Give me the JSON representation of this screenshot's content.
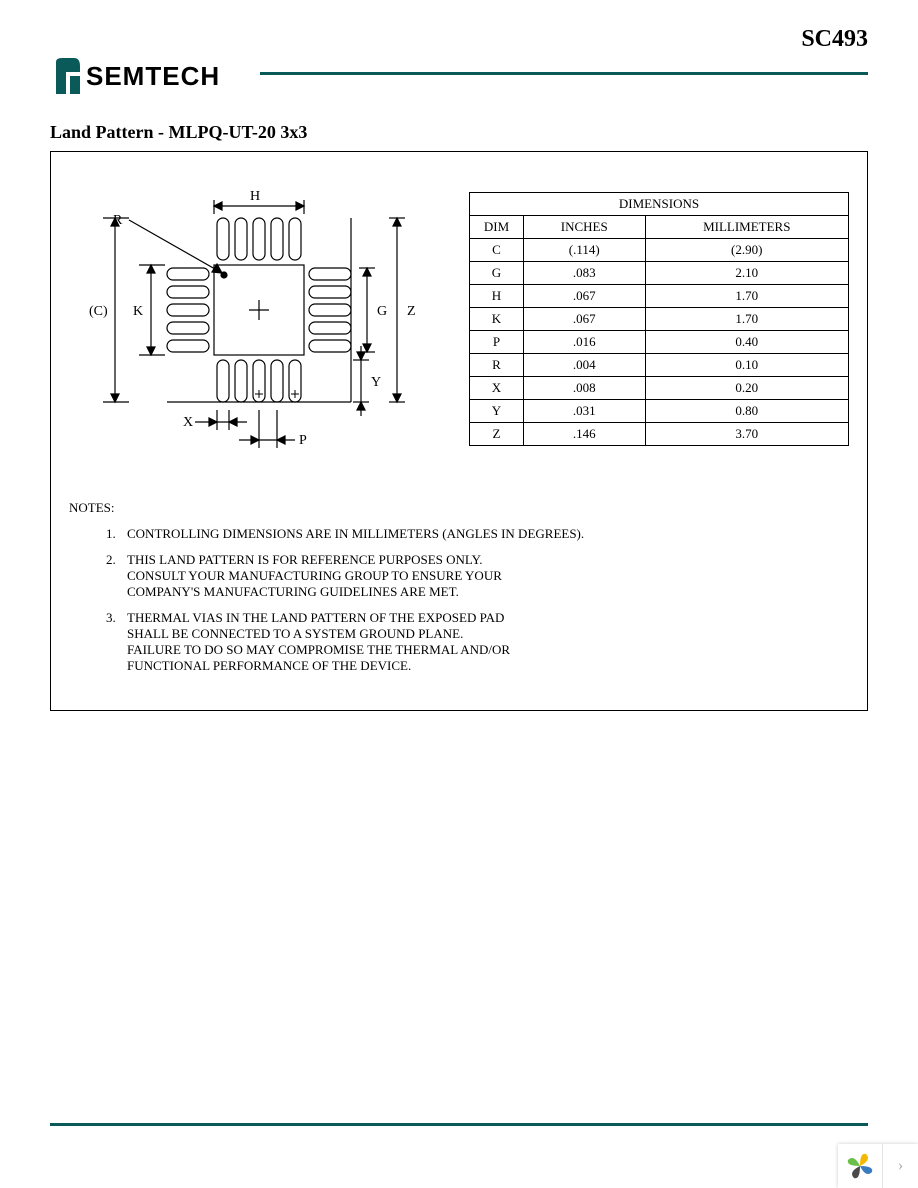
{
  "header": {
    "part_number": "SC493",
    "company_name": "SEMTECH",
    "rule_color": "#0a5a5a"
  },
  "section_title": "Land Pattern - MLPQ-UT-20 3x3",
  "diagram": {
    "labels": {
      "H": "H",
      "R": "R",
      "C": "(C)",
      "K": "K",
      "G": "G",
      "Z": "Z",
      "Y": "Y",
      "X": "X",
      "P": "P"
    },
    "stroke": "#000000",
    "fill_bg": "#ffffff",
    "pad_count_per_side": 5
  },
  "dimensions_table": {
    "title": "DIMENSIONS",
    "col_headers": [
      "DIM",
      "INCHES",
      "MILLIMETERS"
    ],
    "rows": [
      {
        "dim": "C",
        "in": "(.114)",
        "mm": "(2.90)"
      },
      {
        "dim": "G",
        "in": ".083",
        "mm": "2.10"
      },
      {
        "dim": "H",
        "in": ".067",
        "mm": "1.70"
      },
      {
        "dim": "K",
        "in": ".067",
        "mm": "1.70"
      },
      {
        "dim": "P",
        "in": ".016",
        "mm": "0.40"
      },
      {
        "dim": "R",
        "in": ".004",
        "mm": "0.10"
      },
      {
        "dim": "X",
        "in": ".008",
        "mm": "0.20"
      },
      {
        "dim": "Y",
        "in": ".031",
        "mm": "0.80"
      },
      {
        "dim": "Z",
        "in": ".146",
        "mm": "3.70"
      }
    ]
  },
  "notes": {
    "label": "NOTES:",
    "items": [
      [
        "CONTROLLING DIMENSIONS ARE IN MILLIMETERS (ANGLES IN DEGREES)."
      ],
      [
        "THIS LAND PATTERN IS FOR REFERENCE PURPOSES ONLY.",
        "CONSULT YOUR MANUFACTURING GROUP TO ENSURE YOUR",
        "COMPANY'S MANUFACTURING GUIDELINES ARE MET."
      ],
      [
        "THERMAL VIAS IN THE LAND PATTERN OF THE EXPOSED PAD",
        "SHALL BE CONNECTED TO A SYSTEM GROUND PLANE.",
        "FAILURE TO DO SO MAY COMPROMISE THE THERMAL AND/OR",
        "FUNCTIONAL PERFORMANCE OF THE DEVICE."
      ]
    ]
  },
  "corner_widget": {
    "petal_colors": [
      "#6abf4b",
      "#f5b800",
      "#3a7bbf",
      "#4a4a4a"
    ],
    "chevron": "›"
  }
}
